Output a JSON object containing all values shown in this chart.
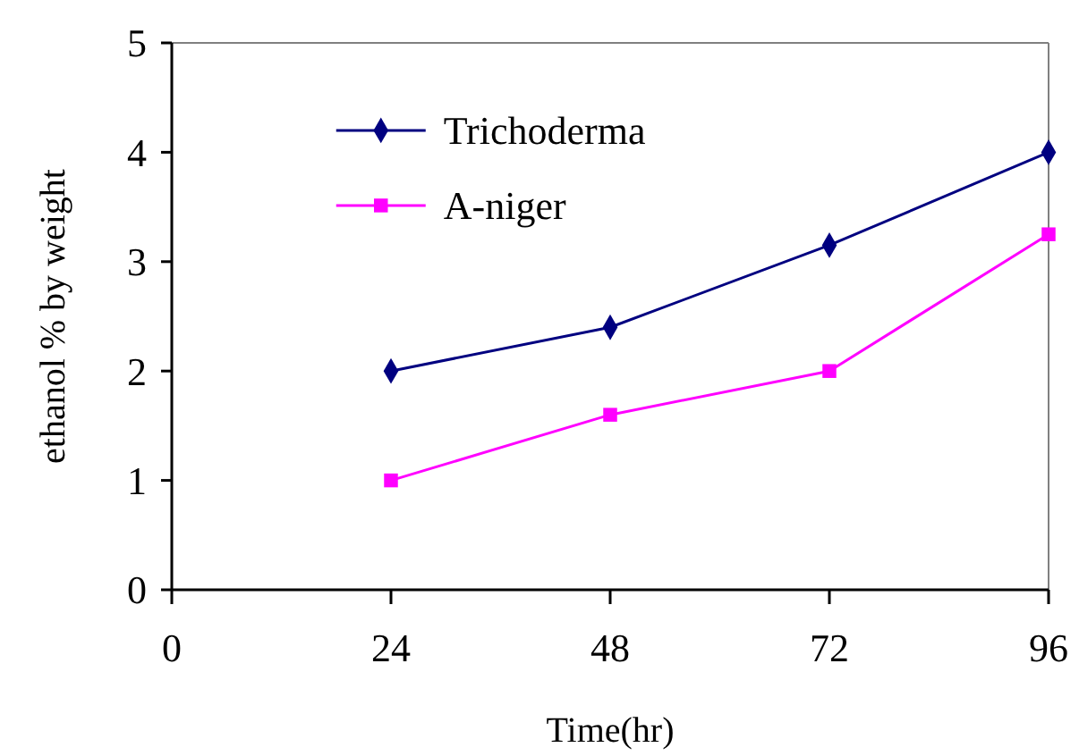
{
  "chart_data": {
    "type": "line",
    "xlabel": "Time(hr)",
    "ylabel": "ethanol % by weight",
    "x": [
      24,
      48,
      72,
      96
    ],
    "xlim": [
      0,
      96
    ],
    "xticks": [
      0,
      24,
      48,
      72,
      96
    ],
    "ylim": [
      0,
      5
    ],
    "yticks": [
      0,
      1,
      2,
      3,
      4,
      5
    ],
    "grid": false,
    "legend": "top left",
    "series": [
      {
        "name": "Trichoderma",
        "color": "#000080",
        "values": [
          2,
          2.4,
          3.15,
          4
        ],
        "marker": "diamond"
      },
      {
        "name": "A-niger",
        "color": "#ff00ff",
        "values": [
          1,
          1.6,
          2,
          3.25
        ],
        "marker": "square"
      }
    ]
  }
}
